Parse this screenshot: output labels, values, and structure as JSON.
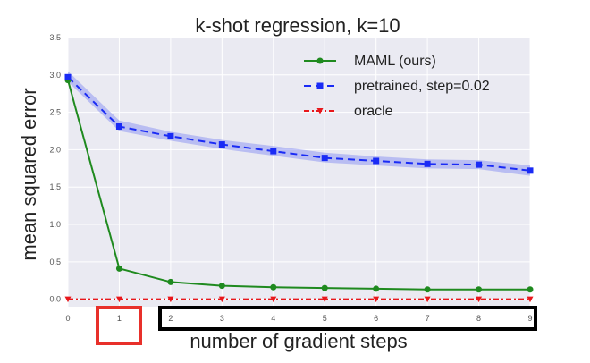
{
  "chart_data": {
    "type": "line",
    "title": "k-shot regression, k=10",
    "xlabel": "number of gradient steps",
    "ylabel": "mean squared error",
    "xlim": [
      0,
      9
    ],
    "ylim": [
      -0.1,
      3.5
    ],
    "x": [
      0,
      1,
      2,
      3,
      4,
      5,
      6,
      7,
      8,
      9
    ],
    "xticks": [
      "0",
      "1",
      "2",
      "3",
      "4",
      "5",
      "6",
      "7",
      "8",
      "9"
    ],
    "yticks": [
      "0.0",
      "0.5",
      "1.0",
      "1.5",
      "2.0",
      "2.5",
      "3.0",
      "3.5"
    ],
    "grid": true,
    "legend_position": "top-right",
    "series": [
      {
        "name": "MAML (ours)",
        "color": "#1f8a1f",
        "marker": "circle",
        "linestyle": "solid",
        "values": [
          2.93,
          0.41,
          0.23,
          0.18,
          0.16,
          0.15,
          0.14,
          0.13,
          0.13,
          0.13
        ]
      },
      {
        "name": "pretrained, step=0.02",
        "color": "#1a2bf5",
        "marker": "square",
        "linestyle": "dashed",
        "values": [
          2.97,
          2.31,
          2.18,
          2.07,
          1.98,
          1.89,
          1.85,
          1.81,
          1.8,
          1.72
        ],
        "band_lower": [
          2.91,
          2.25,
          2.12,
          2.01,
          1.92,
          1.83,
          1.79,
          1.75,
          1.74,
          1.65
        ],
        "band_upper": [
          3.05,
          2.39,
          2.24,
          2.13,
          2.05,
          1.96,
          1.91,
          1.87,
          1.86,
          1.79
        ],
        "band_color": "#8f97f2"
      },
      {
        "name": "oracle",
        "color": "#e8171b",
        "marker": "triangle-down",
        "linestyle": "dashdot",
        "values": [
          0,
          0,
          0,
          0,
          0,
          0,
          0,
          0,
          0,
          0
        ]
      }
    ]
  }
}
